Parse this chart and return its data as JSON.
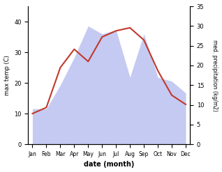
{
  "months": [
    "Jan",
    "Feb",
    "Mar",
    "Apr",
    "May",
    "Jun",
    "Jul",
    "Aug",
    "Sep",
    "Oct",
    "Nov",
    "Dec"
  ],
  "temp": [
    10,
    12,
    25,
    31,
    27,
    35,
    37,
    38,
    34,
    24,
    16,
    13
  ],
  "precip": [
    9,
    9,
    15,
    22,
    30,
    28,
    29,
    17,
    28,
    17,
    16,
    13
  ],
  "temp_color": "#c0392b",
  "precip_fill_color": "#c5caf2",
  "temp_ylim": [
    0,
    45
  ],
  "precip_ylim": [
    0,
    35
  ],
  "temp_yticks": [
    0,
    10,
    20,
    30,
    40
  ],
  "precip_yticks": [
    0,
    5,
    10,
    15,
    20,
    25,
    30,
    35
  ],
  "xlabel": "date (month)",
  "ylabel_left": "max temp (C)",
  "ylabel_right": "med. precipitation (kg/m2)",
  "bg_color": "#ffffff"
}
